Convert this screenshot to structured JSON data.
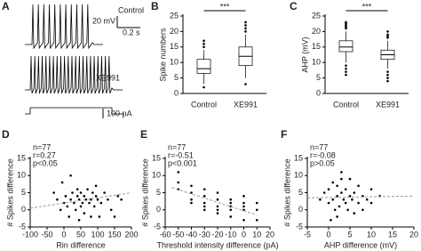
{
  "traces": {
    "panel": "A",
    "control": "Control",
    "drug": "XE991",
    "volt_scale": "20 mV",
    "time_scale": "0.2 s",
    "current_scale": "100 pA"
  },
  "chart_data": [
    {
      "type": "box",
      "panel": "B",
      "ylabel": "Spike numbers",
      "significance": "***",
      "categories": [
        "Control",
        "XE991"
      ],
      "boxes": [
        {
          "min": 3,
          "q1": 6.5,
          "median": 8,
          "q3": 11,
          "max": 14,
          "outliers": [
            15,
            16,
            17,
            2
          ]
        },
        {
          "min": 5,
          "q1": 9,
          "median": 12,
          "q3": 15,
          "max": 19,
          "outliers": [
            20,
            21,
            22,
            23,
            3
          ]
        }
      ],
      "ylim": [
        0,
        25
      ],
      "yticks": [
        0,
        5,
        10,
        15,
        20,
        25
      ]
    },
    {
      "type": "box",
      "panel": "C",
      "ylabel": "AHP (mV)",
      "significance": "***",
      "categories": [
        "Control",
        "XE991"
      ],
      "boxes": [
        {
          "min": 10,
          "q1": 13.5,
          "median": 15,
          "q3": 17,
          "max": 20,
          "outliers": [
            21,
            21.5,
            22,
            22.5,
            23,
            9,
            8,
            7,
            6
          ]
        },
        {
          "min": 8,
          "q1": 11,
          "median": 12.5,
          "q3": 14,
          "max": 17,
          "outliers": [
            18,
            18.5,
            19,
            20,
            7,
            6,
            5,
            4
          ]
        }
      ],
      "ylim": [
        0,
        25
      ],
      "yticks": [
        0,
        5,
        10,
        15,
        20,
        25
      ]
    },
    {
      "type": "scatter",
      "panel": "D",
      "ylabel": "# Spikes difference",
      "xlabel": "Rin difference",
      "annotations": [
        "n=77",
        "r=0.27",
        "p<0.05"
      ],
      "x": [
        -30,
        -20,
        -10,
        0,
        5,
        10,
        15,
        20,
        25,
        30,
        35,
        40,
        40,
        45,
        50,
        50,
        55,
        60,
        60,
        65,
        70,
        75,
        80,
        85,
        90,
        95,
        100,
        105,
        110,
        120,
        130,
        140,
        150,
        160,
        170,
        -5,
        20,
        45,
        80,
        95
      ],
      "values": [
        5,
        3,
        0,
        2,
        4,
        1,
        -2,
        3,
        5,
        2,
        0,
        4,
        6,
        3,
        1,
        5,
        2,
        4,
        -1,
        3,
        6,
        2,
        3,
        5,
        1,
        4,
        3,
        -2,
        2,
        5,
        3,
        0,
        -2,
        4,
        3,
        8,
        10,
        -3,
        -2,
        7
      ],
      "trendline": {
        "x": [
          -100,
          200
        ],
        "y": [
          0.5,
          5
        ]
      },
      "xlim": [
        -100,
        200
      ],
      "xticks": [
        -100,
        -50,
        0,
        50,
        100,
        150,
        200
      ],
      "ylim": [
        -5,
        15
      ],
      "yticks": [
        -5,
        0,
        5,
        10,
        15
      ]
    },
    {
      "type": "scatter",
      "panel": "E",
      "ylabel": "# Spikes difference",
      "xlabel": "Threshold intensity difference (pA)",
      "annotations": [
        "n=77",
        "r=-0.51",
        "p<0.001"
      ],
      "x": [
        -50,
        -50,
        -50,
        -40,
        -40,
        -40,
        -30,
        -30,
        -30,
        -30,
        -20,
        -20,
        -20,
        -20,
        -20,
        -10,
        -10,
        -10,
        -10,
        -10,
        0,
        0,
        0,
        0,
        0,
        10,
        10,
        10,
        -40,
        -30
      ],
      "values": [
        11,
        8,
        6,
        5,
        3,
        2,
        4,
        2,
        1,
        0,
        5,
        3,
        1,
        -1,
        0,
        3,
        1,
        0,
        -2,
        2,
        4,
        2,
        0,
        -3,
        1,
        2,
        0,
        -3,
        7,
        6
      ],
      "trendline": {
        "x": [
          -55,
          10
        ],
        "y": [
          6.5,
          -1.5
        ]
      },
      "xlim": [
        -60,
        20
      ],
      "xticks": [
        -60,
        -50,
        -40,
        -30,
        -20,
        -10,
        0,
        10,
        20
      ],
      "ylim": [
        -5,
        15
      ],
      "yticks": [
        -5,
        0,
        5,
        10,
        15
      ]
    },
    {
      "type": "scatter",
      "panel": "F",
      "ylabel": "# Spikes difference",
      "xlabel": "AHP difference (mV)",
      "annotations": [
        "n=77",
        "r=-0.08",
        "p>0.05"
      ],
      "x": [
        -1,
        0,
        0,
        1,
        1,
        1.5,
        2,
        2,
        2.5,
        3,
        3,
        3.5,
        4,
        4,
        4.5,
        5,
        5,
        5.5,
        6,
        6,
        7,
        7,
        8,
        8,
        9,
        10,
        10,
        12,
        -2,
        0.5,
        2,
        3
      ],
      "values": [
        5,
        2,
        6,
        3,
        8,
        0,
        4,
        7,
        1,
        5,
        11,
        3,
        2,
        6,
        0,
        4,
        9,
        3,
        -1,
        5,
        2,
        7,
        4,
        0,
        3,
        6,
        2,
        4,
        3,
        -3,
        -2,
        9
      ],
      "trendline": {
        "x": [
          -5,
          20
        ],
        "y": [
          3.5,
          4
        ]
      },
      "xlim": [
        -5,
        20
      ],
      "xticks": [
        -5,
        0,
        5,
        10,
        15,
        20
      ],
      "ylim": [
        -5,
        15
      ],
      "yticks": [
        -5,
        0,
        5,
        10,
        15
      ]
    }
  ]
}
